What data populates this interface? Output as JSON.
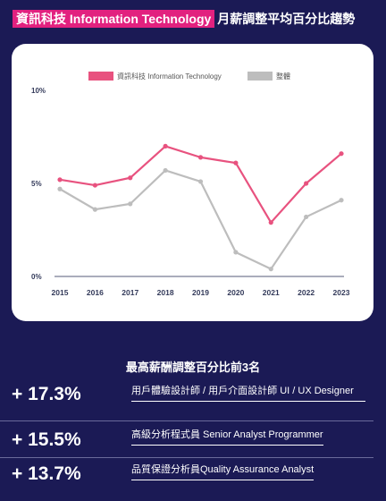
{
  "header": {
    "title_highlight": "資訊科技 Information Technology",
    "title_rest": "月薪調整平均百分比趨勢"
  },
  "colors": {
    "background": "#1b1a55",
    "accent": "#e2217f",
    "series_it": "#e8527f",
    "series_overall": "#bdbdbd"
  },
  "chart_data": {
    "type": "line",
    "x": [
      "2015",
      "2016",
      "2017",
      "2018",
      "2019",
      "2020",
      "2021",
      "2022",
      "2023"
    ],
    "series": [
      {
        "name": "資訊科技 Information Technology",
        "values": [
          5.2,
          4.9,
          5.3,
          7.0,
          6.4,
          6.1,
          2.9,
          5.0,
          6.6
        ]
      },
      {
        "name": "整體",
        "values": [
          4.7,
          3.6,
          3.9,
          5.7,
          5.1,
          1.3,
          0.4,
          3.2,
          4.1
        ]
      }
    ],
    "yticks": [
      "0%",
      "5%",
      "10%"
    ],
    "ylim": [
      0,
      10
    ],
    "grid": false,
    "legend_position": "top-center"
  },
  "top3": {
    "heading": "最高薪酬調整百分比前3名",
    "items": [
      {
        "value": "+ 17.3%",
        "label": "用戶體驗設計師 / 用戶介面設計師 UI / UX Designer"
      },
      {
        "value": "+ 15.5%",
        "label": "高級分析程式員 Senior Analyst Programmer"
      },
      {
        "value": "+ 13.7%",
        "label": "品質保證分析員Quality Assurance Analyst"
      }
    ]
  }
}
